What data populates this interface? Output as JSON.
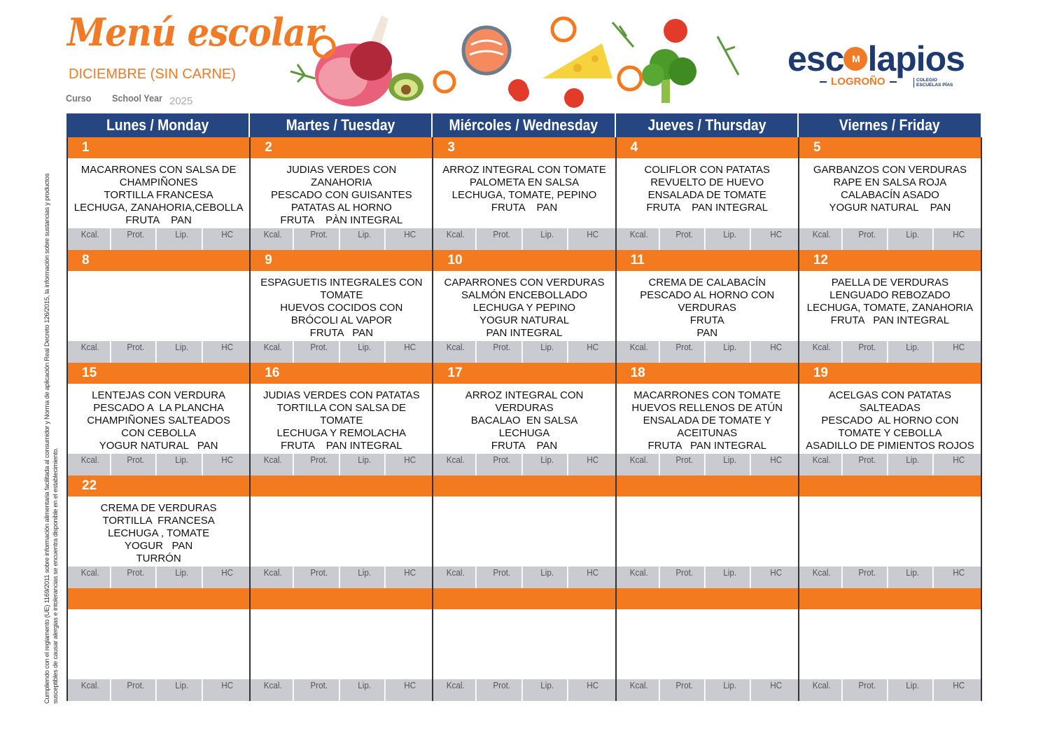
{
  "header": {
    "title": "Menú escolar",
    "subtitle": "DICIEMBRE (SIN CARNE)",
    "curso_label": "Curso",
    "school_year_label": "School Year",
    "year": "2025"
  },
  "logo": {
    "name": "escolapios",
    "city": "LOGROÑO",
    "college": "COLEGIO ESCUELAS PÍAS",
    "colors": {
      "navy": "#1e3a6e",
      "orange": "#f07a26"
    }
  },
  "side_note": "Cumpliendo con el reglamento (UE) 1169/2011 sobre información alimentaria facilitada al consumidor y Norma de aplicación Real Decreto 126/2015, la información sobre sustancias y productos susceptibles de causar alergias e intolerancias se encuentra disponible en el establecimiento.",
  "colors": {
    "header_blue": "#254680",
    "day_orange": "#f47a20",
    "nutrition_grey": "#c9cbd1"
  },
  "days_of_week": [
    "Lunes / Monday",
    "Martes / Tuesday",
    "Miércoles / Wednesday",
    "Jueves / Thursday",
    "Viernes / Friday"
  ],
  "nutrition_labels": [
    "Kcal.",
    "Prot.",
    "Lip.",
    "HC"
  ],
  "weeks": [
    [
      {
        "day": "1",
        "lines": [
          "MACARRONES CON SALSA DE",
          "CHAMPIÑONES",
          "TORTILLA FRANCESA",
          "LECHUGA, ZANAHORIA,CEBOLLA",
          "FRUTA    PAN"
        ]
      },
      {
        "day": "2",
        "lines": [
          "JUDIAS VERDES CON",
          "ZANAHORIA",
          "PESCADO CON GUISANTES",
          "PATATAS AL HORNO",
          "FRUTA    PÀN INTEGRAL"
        ]
      },
      {
        "day": "3",
        "lines": [
          "ARROZ INTEGRAL CON TOMATE",
          "PALOMETA EN SALSA",
          "LECHUGA, TOMATE, PEPINO",
          "FRUTA    PAN"
        ]
      },
      {
        "day": "4",
        "lines": [
          "COLIFLOR CON PATATAS",
          "REVUELTO DE HUEVO",
          "ENSALADA DE TOMATE",
          "FRUTA    PAN INTEGRAL"
        ]
      },
      {
        "day": "5",
        "lines": [
          "GARBANZOS CON VERDURAS",
          "RAPE EN SALSA ROJA",
          "CALABACÍN ASADO",
          "YOGUR NATURAL    PAN"
        ]
      }
    ],
    [
      {
        "day": "8",
        "lines": []
      },
      {
        "day": "9",
        "lines": [
          "ESPAGUETIS INTEGRALES CON",
          "TOMATE",
          "HUEVOS COCIDOS CON",
          "BRÓCOLI AL VAPOR",
          "FRUTA   PAN"
        ]
      },
      {
        "day": "10",
        "lines": [
          "CAPARRONES CON VERDURAS",
          "SALMÓN ENCEBOLLADO",
          "LECHUGA Y PEPINO",
          "YOGUR NATURAL",
          "PAN INTEGRAL"
        ]
      },
      {
        "day": "11",
        "lines": [
          "CREMA DE CALABACÍN",
          "PESCADO AL HORNO CON",
          "VERDURAS",
          "FRUTA",
          "PAN"
        ]
      },
      {
        "day": "12",
        "lines": [
          "PAELLA DE VERDURAS",
          "LENGUADO REBOZADO",
          "LECHUGA, TOMATE, ZANAHORIA",
          "FRUTA   PAN INTEGRAL"
        ]
      }
    ],
    [
      {
        "day": "15",
        "lines": [
          "LENTEJAS CON VERDURA",
          "PESCADO A  LA PLANCHA",
          "CHAMPIÑONES SALTEADOS",
          "CON CEBOLLA",
          "YOGUR NATURAL   PAN"
        ]
      },
      {
        "day": "16",
        "lines": [
          "JUDIAS VERDES CON PATATAS",
          "TORTILLA CON SALSA DE",
          "TOMATE",
          "LECHUGA Y REMOLACHA",
          "FRUTA    PAN INTEGRAL"
        ]
      },
      {
        "day": "17",
        "lines": [
          "ARROZ INTEGRAL CON",
          "VERDURAS",
          "BACALAO  EN SALSA",
          "LECHUGA",
          "FRUTA    PAN"
        ]
      },
      {
        "day": "18",
        "lines": [
          "MACARRONES CON TOMATE",
          "HUEVOS RELLENOS DE ATÚN",
          "ENSALADA DE TOMATE Y",
          "ACEITUNAS",
          "FRUTA   PAN INTEGRAL"
        ]
      },
      {
        "day": "19",
        "lines": [
          "ACELGAS CON PATATAS",
          "SALTEADAS",
          "PESCADO  AL HORNO CON",
          "TOMATE Y CEBOLLA",
          "ASADILLO DE PIMIENTOS ROJOS"
        ]
      }
    ],
    [
      {
        "day": "22",
        "lines": [
          "CREMA DE VERDURAS",
          "TORTILLA  FRANCESA",
          "LECHUGA , TOMATE",
          "YOGUR   PAN",
          "TURRÓN"
        ]
      },
      {
        "day": "",
        "lines": []
      },
      {
        "day": "",
        "lines": []
      },
      {
        "day": "",
        "lines": []
      },
      {
        "day": "",
        "lines": []
      }
    ],
    [
      {
        "day": "",
        "lines": []
      },
      {
        "day": "",
        "lines": []
      },
      {
        "day": "",
        "lines": []
      },
      {
        "day": "",
        "lines": []
      },
      {
        "day": "",
        "lines": []
      }
    ]
  ]
}
